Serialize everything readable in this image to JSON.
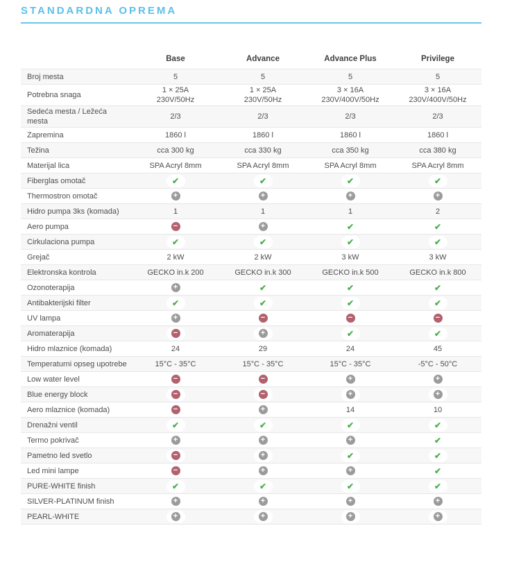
{
  "title": "STANDARDNA OPREMA",
  "theme": {
    "accent_blue": "#5bc0e8",
    "check_green": "#4caf50",
    "plus_gray": "#9b9b9b",
    "minus_red": "#b2616e",
    "alt_row_bg": "#f7f7f7",
    "border_gray": "#e7e7e7",
    "text_gray": "#4d4d4d"
  },
  "icons": {
    "check": "✔",
    "plus": "+",
    "minus": "−"
  },
  "table": {
    "columns": [
      "Base",
      "Advance",
      "Advance Plus",
      "Privilege"
    ],
    "rows": [
      {
        "label": "Broj mesta",
        "values": [
          "5",
          "5",
          "5",
          "5"
        ]
      },
      {
        "label": "Potrebna snaga",
        "values": [
          "1 × 25A\n230V/50Hz",
          "1 × 25A\n230V/50Hz",
          "3 × 16A\n230V/400V/50Hz",
          "3 × 16A\n230V/400V/50Hz"
        ]
      },
      {
        "label": "Sedeća mesta / Ležeća mesta",
        "values": [
          "2/3",
          "2/3",
          "2/3",
          "2/3"
        ]
      },
      {
        "label": "Zapremina",
        "values": [
          "1860 l",
          "1860 l",
          "1860 l",
          "1860 l"
        ]
      },
      {
        "label": "Težina",
        "values": [
          "cca 300 kg",
          "cca 330 kg",
          "cca 350 kg",
          "cca 380 kg"
        ]
      },
      {
        "label": "Materijal lica",
        "values": [
          "SPA Acryl 8mm",
          "SPA Acryl 8mm",
          "SPA Acryl 8mm",
          "SPA Acryl 8mm"
        ]
      },
      {
        "label": "Fiberglas omotač",
        "values": [
          "icon:check",
          "icon:check",
          "icon:check",
          "icon:check"
        ]
      },
      {
        "label": "Thermostron omotač",
        "values": [
          "icon:plus",
          "icon:plus",
          "icon:plus",
          "icon:plus"
        ]
      },
      {
        "label": "Hidro pumpa 3ks (komada)",
        "values": [
          "1",
          "1",
          "1",
          "2"
        ]
      },
      {
        "label": "Aero pumpa",
        "values": [
          "icon:minus",
          "icon:plus",
          "icon:check",
          "icon:check"
        ]
      },
      {
        "label": "Cirkulaciona pumpa",
        "values": [
          "icon:check",
          "icon:check",
          "icon:check",
          "icon:check"
        ]
      },
      {
        "label": "Grejač",
        "values": [
          "2 kW",
          "2 kW",
          "3 kW",
          "3 kW"
        ]
      },
      {
        "label": "Elektronska kontrola",
        "values": [
          "GECKO in.k 200",
          "GECKO in.k 300",
          "GECKO in.k 500",
          "GECKO in.k 800"
        ]
      },
      {
        "label": "Ozonoterapija",
        "values": [
          "icon:plus",
          "icon:check",
          "icon:check",
          "icon:check"
        ]
      },
      {
        "label": "Antibakterijski filter",
        "values": [
          "icon:check",
          "icon:check",
          "icon:check",
          "icon:check"
        ]
      },
      {
        "label": "UV lampa",
        "values": [
          "icon:plus",
          "icon:minus",
          "icon:minus",
          "icon:minus"
        ]
      },
      {
        "label": "Aromaterapija",
        "values": [
          "icon:minus",
          "icon:plus",
          "icon:check",
          "icon:check"
        ]
      },
      {
        "label": "Hidro mlaznice (komada)",
        "values": [
          "24",
          "29",
          "24",
          "45"
        ]
      },
      {
        "label": "Temperaturni opseg upotrebe",
        "values": [
          "15°C - 35°C",
          "15°C - 35°C",
          "15°C - 35°C",
          "-5°C - 50°C"
        ]
      },
      {
        "label": "Low water level",
        "values": [
          "icon:minus",
          "icon:minus",
          "icon:plus",
          "icon:plus"
        ]
      },
      {
        "label": "Blue energy block",
        "values": [
          "icon:minus",
          "icon:minus",
          "icon:plus",
          "icon:plus"
        ]
      },
      {
        "label": "Aero mlaznice (komada)",
        "values": [
          "icon:minus",
          "icon:plus",
          "14",
          "10"
        ]
      },
      {
        "label": "Drenažni ventil",
        "values": [
          "icon:check",
          "icon:check",
          "icon:check",
          "icon:check"
        ]
      },
      {
        "label": "Termo pokrivač",
        "values": [
          "icon:plus",
          "icon:plus",
          "icon:plus",
          "icon:check"
        ]
      },
      {
        "label": "Pametno led svetlo",
        "values": [
          "icon:minus",
          "icon:plus",
          "icon:check",
          "icon:check"
        ]
      },
      {
        "label": "Led mini lampe",
        "values": [
          "icon:minus",
          "icon:plus",
          "icon:plus",
          "icon:check"
        ]
      },
      {
        "label": "PURE-WHITE finish",
        "values": [
          "icon:check",
          "icon:check",
          "icon:check",
          "icon:check"
        ]
      },
      {
        "label": "SILVER-PLATINUM finish",
        "values": [
          "icon:plus",
          "icon:plus",
          "icon:plus",
          "icon:plus"
        ]
      },
      {
        "label": "PEARL-WHITE",
        "values": [
          "icon:plus",
          "icon:plus",
          "icon:plus",
          "icon:plus"
        ]
      }
    ]
  }
}
